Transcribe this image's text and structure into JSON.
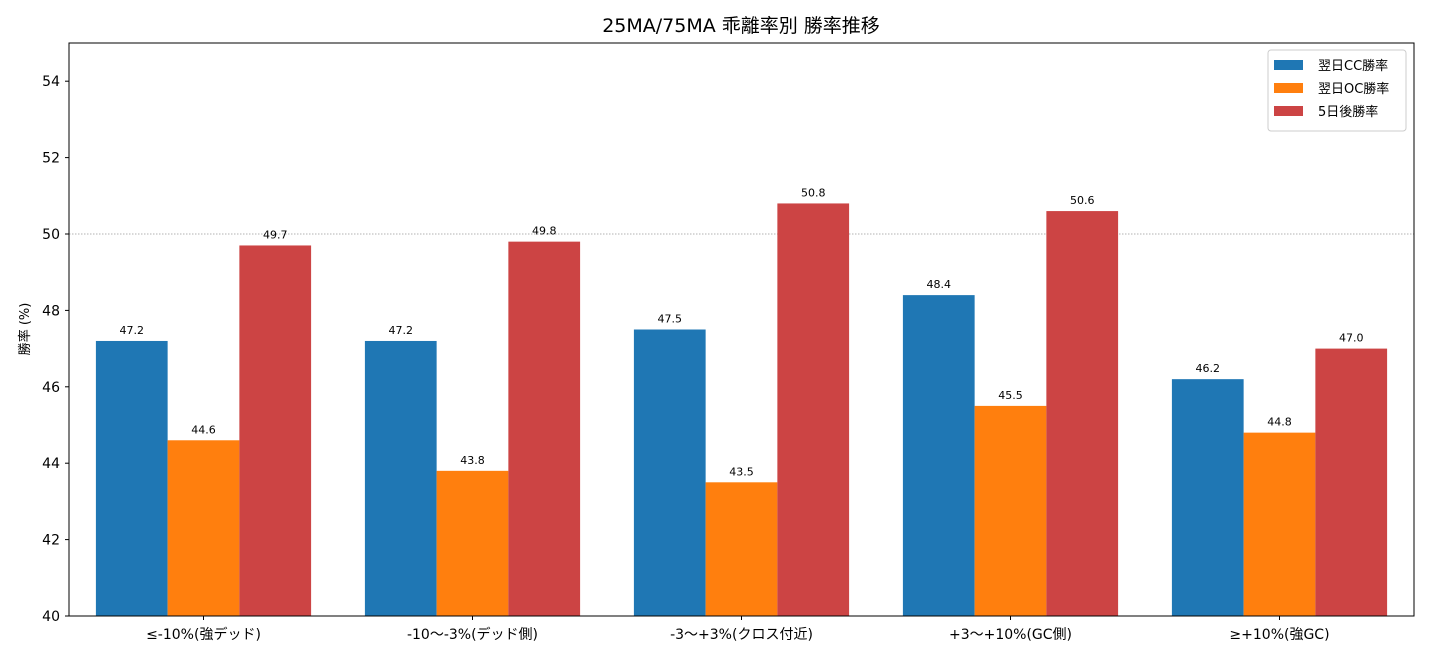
{
  "chart_data": {
    "type": "bar",
    "title": "25MA/75MA 乖離率別 勝率推移",
    "xlabel": "",
    "ylabel": "勝率 (%)",
    "ylim": [
      40,
      55
    ],
    "yticks": [
      40,
      42,
      44,
      46,
      48,
      50,
      52,
      54
    ],
    "reference_line": 50,
    "legend_position": "top-right",
    "grid": false,
    "categories": [
      "≤-10%(強デッド)",
      "-10～-3%(デッド側)",
      "-3～+3%(クロス付近)",
      "+3～+10%(GC側)",
      "≥+10%(強GC)"
    ],
    "series": [
      {
        "name": "翌日CC勝率",
        "color": "#1f77b4",
        "values": [
          47.2,
          47.2,
          47.5,
          48.4,
          46.2
        ]
      },
      {
        "name": "翌日OC勝率",
        "color": "#ff7f0e",
        "values": [
          44.6,
          43.8,
          43.5,
          45.5,
          44.8
        ]
      },
      {
        "name": "5日後勝率",
        "color": "#cc4444",
        "values": [
          49.7,
          49.8,
          50.8,
          50.6,
          47.0
        ]
      }
    ]
  }
}
